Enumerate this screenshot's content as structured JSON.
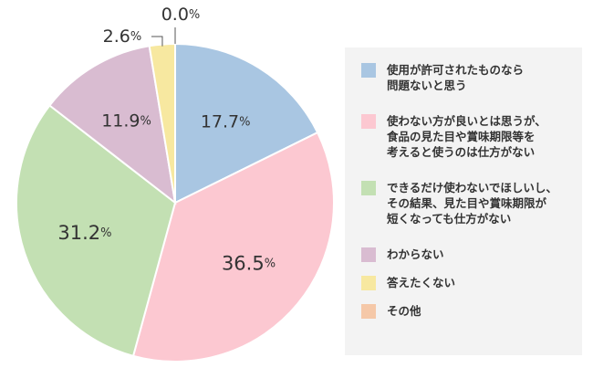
{
  "chart_data": {
    "type": "pie",
    "categories": [
      "使用が許可されたものなら\n問題ないと思う",
      "使わない方が良いとは思うが、\n食品の見た目や賞味期限等を\n考えると使うのは仕方がない",
      "できるだけ使わないでほしいし、\nその結果、見た目や賞味期限が\n短くなっても仕方がない",
      "わからない",
      "答えたくない",
      "その他"
    ],
    "values": [
      17.7,
      36.5,
      31.2,
      11.9,
      2.6,
      0.0
    ],
    "value_labels": [
      "17.7",
      "36.5",
      "31.2",
      "11.9",
      "2.6",
      "0.0"
    ],
    "unit": "%",
    "colors": [
      "#a9c6e2",
      "#fcc8d1",
      "#c3e0b3",
      "#d9bcd1",
      "#f7e8a0",
      "#f5c8a8"
    ],
    "start_angle": "12 o'clock",
    "direction": "clockwise",
    "legend_position": "right"
  }
}
